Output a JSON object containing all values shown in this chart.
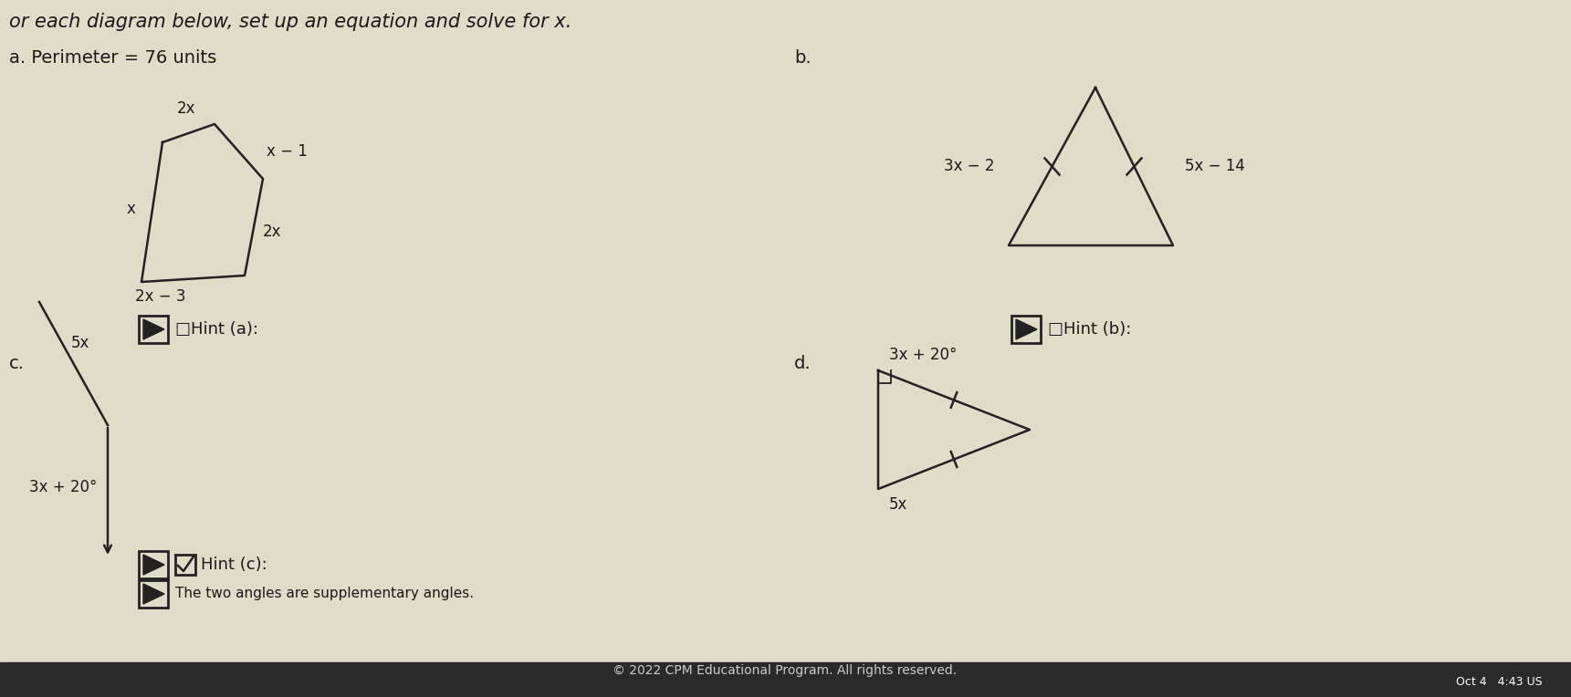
{
  "bg_color": "#ddddc8",
  "text_color": "#1a1a1a",
  "line_color": "#222222",
  "title": "or each diagram below, set up an equation and solve for x.",
  "label_a": "a. Perimeter = 76 units",
  "label_b": "b.",
  "label_c": "c.",
  "label_d": "d.",
  "side_top": "2x",
  "side_left": "x",
  "side_upper_right": "x − 1",
  "side_lower_right": "2x",
  "side_bottom": "2x − 3",
  "tri_b_left": "3x − 2",
  "tri_b_right": "5x − 14",
  "ang_c_top": "5x",
  "ang_c_bot": "3x + 20°",
  "tri_d_top": "3x + 20°",
  "tri_d_bot": "5x",
  "hint_a": "□Hint (a):",
  "hint_b": "□Hint (b):",
  "hint_c_checked": "☑Hint (c):",
  "hint_c_text": "The two angles are supplementary angles.",
  "copyright": "© 2022 CPM Educational Program. All rights reserved.",
  "status": "Oct 4   4:43 US",
  "bottom_bar_color": "#2a2a2a"
}
